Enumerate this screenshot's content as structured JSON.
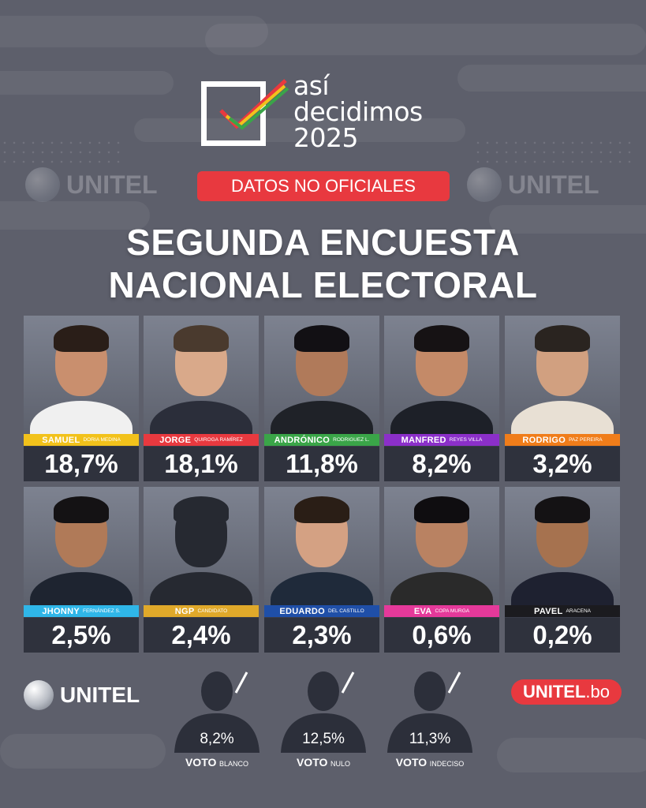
{
  "brand": {
    "logo_line1": "así",
    "logo_line2": "decidimos",
    "logo_line3": "2025",
    "watermark": "UNITEL",
    "badge": "DATOS NO OFICIALES",
    "footer_logo": "UNITEL",
    "footer_site_main": "UNITEL",
    "footer_site_ext": ".bo"
  },
  "title": {
    "line1": "SEGUNDA ENCUESTA",
    "line2": "NACIONAL ELECTORAL"
  },
  "colors": {
    "accent_red": "#e8393f",
    "background": "#5d5f6b"
  },
  "candidates": [
    {
      "first": "SAMUEL",
      "last": "DORIA MEDINA",
      "pct": "18,7%",
      "color": "#f2c21b"
    },
    {
      "first": "JORGE",
      "last": "QUIROGA RAMÍREZ",
      "pct": "18,1%",
      "color": "#e8393f"
    },
    {
      "first": "ANDRÓNICO",
      "last": "RODRIGUEZ L.",
      "pct": "11,8%",
      "color": "#3aa548"
    },
    {
      "first": "MANFRED",
      "last": "REYES VILLA",
      "pct": "8,2%",
      "color": "#8b2fc9"
    },
    {
      "first": "RODRIGO",
      "last": "PAZ PEREIRA",
      "pct": "3,2%",
      "color": "#f07d1a"
    },
    {
      "first": "JHONNY",
      "last": "FERNÁNDEZ S.",
      "pct": "2,5%",
      "color": "#2fb6e8"
    },
    {
      "first": "NGP",
      "last": "CANDIDATO",
      "pct": "2,4%",
      "color": "#e0a92a"
    },
    {
      "first": "EDUARDO",
      "last": "DEL CASTILLO",
      "pct": "2,3%",
      "color": "#1f4fa8"
    },
    {
      "first": "EVA",
      "last": "COPA MURGA",
      "pct": "0,6%",
      "color": "#e5399a"
    },
    {
      "first": "PAVEL",
      "last": "ARACENA",
      "pct": "0,2%",
      "color": "#1b1b1f"
    }
  ],
  "votes": [
    {
      "value": "8,2%",
      "label": "VOTO",
      "sub": "BLANCO"
    },
    {
      "value": "12,5%",
      "label": "VOTO",
      "sub": "NULO"
    },
    {
      "value": "11,3%",
      "label": "VOTO",
      "sub": "INDECISO"
    }
  ]
}
